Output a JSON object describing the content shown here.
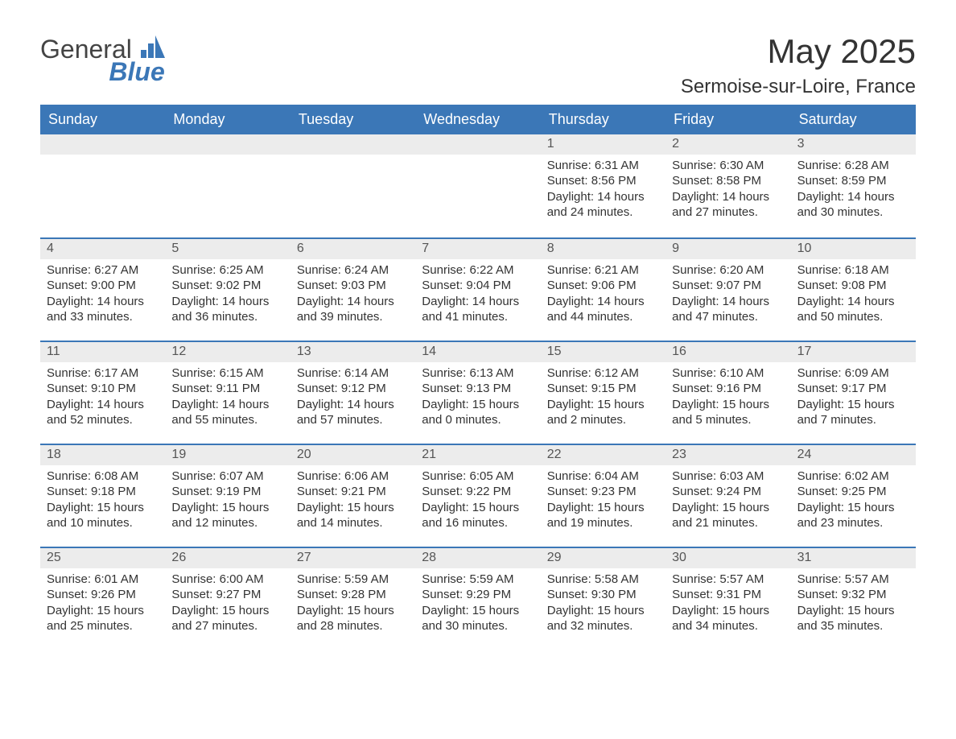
{
  "brand": {
    "text_general": "General",
    "text_blue": "Blue",
    "logo_color": "#3b77b7"
  },
  "title": "May 2025",
  "location": "Sermoise-sur-Loire, France",
  "colors": {
    "header_bg": "#3b77b7",
    "header_text": "#ffffff",
    "date_row_bg": "#ececec",
    "border_color": "#3b77b7",
    "text_color": "#333333"
  },
  "day_headers": [
    "Sunday",
    "Monday",
    "Tuesday",
    "Wednesday",
    "Thursday",
    "Friday",
    "Saturday"
  ],
  "weeks": [
    [
      {
        "empty": true
      },
      {
        "empty": true
      },
      {
        "empty": true
      },
      {
        "empty": true
      },
      {
        "date": "1",
        "sunrise": "Sunrise: 6:31 AM",
        "sunset": "Sunset: 8:56 PM",
        "daylight1": "Daylight: 14 hours",
        "daylight2": "and 24 minutes."
      },
      {
        "date": "2",
        "sunrise": "Sunrise: 6:30 AM",
        "sunset": "Sunset: 8:58 PM",
        "daylight1": "Daylight: 14 hours",
        "daylight2": "and 27 minutes."
      },
      {
        "date": "3",
        "sunrise": "Sunrise: 6:28 AM",
        "sunset": "Sunset: 8:59 PM",
        "daylight1": "Daylight: 14 hours",
        "daylight2": "and 30 minutes."
      }
    ],
    [
      {
        "date": "4",
        "sunrise": "Sunrise: 6:27 AM",
        "sunset": "Sunset: 9:00 PM",
        "daylight1": "Daylight: 14 hours",
        "daylight2": "and 33 minutes."
      },
      {
        "date": "5",
        "sunrise": "Sunrise: 6:25 AM",
        "sunset": "Sunset: 9:02 PM",
        "daylight1": "Daylight: 14 hours",
        "daylight2": "and 36 minutes."
      },
      {
        "date": "6",
        "sunrise": "Sunrise: 6:24 AM",
        "sunset": "Sunset: 9:03 PM",
        "daylight1": "Daylight: 14 hours",
        "daylight2": "and 39 minutes."
      },
      {
        "date": "7",
        "sunrise": "Sunrise: 6:22 AM",
        "sunset": "Sunset: 9:04 PM",
        "daylight1": "Daylight: 14 hours",
        "daylight2": "and 41 minutes."
      },
      {
        "date": "8",
        "sunrise": "Sunrise: 6:21 AM",
        "sunset": "Sunset: 9:06 PM",
        "daylight1": "Daylight: 14 hours",
        "daylight2": "and 44 minutes."
      },
      {
        "date": "9",
        "sunrise": "Sunrise: 6:20 AM",
        "sunset": "Sunset: 9:07 PM",
        "daylight1": "Daylight: 14 hours",
        "daylight2": "and 47 minutes."
      },
      {
        "date": "10",
        "sunrise": "Sunrise: 6:18 AM",
        "sunset": "Sunset: 9:08 PM",
        "daylight1": "Daylight: 14 hours",
        "daylight2": "and 50 minutes."
      }
    ],
    [
      {
        "date": "11",
        "sunrise": "Sunrise: 6:17 AM",
        "sunset": "Sunset: 9:10 PM",
        "daylight1": "Daylight: 14 hours",
        "daylight2": "and 52 minutes."
      },
      {
        "date": "12",
        "sunrise": "Sunrise: 6:15 AM",
        "sunset": "Sunset: 9:11 PM",
        "daylight1": "Daylight: 14 hours",
        "daylight2": "and 55 minutes."
      },
      {
        "date": "13",
        "sunrise": "Sunrise: 6:14 AM",
        "sunset": "Sunset: 9:12 PM",
        "daylight1": "Daylight: 14 hours",
        "daylight2": "and 57 minutes."
      },
      {
        "date": "14",
        "sunrise": "Sunrise: 6:13 AM",
        "sunset": "Sunset: 9:13 PM",
        "daylight1": "Daylight: 15 hours",
        "daylight2": "and 0 minutes."
      },
      {
        "date": "15",
        "sunrise": "Sunrise: 6:12 AM",
        "sunset": "Sunset: 9:15 PM",
        "daylight1": "Daylight: 15 hours",
        "daylight2": "and 2 minutes."
      },
      {
        "date": "16",
        "sunrise": "Sunrise: 6:10 AM",
        "sunset": "Sunset: 9:16 PM",
        "daylight1": "Daylight: 15 hours",
        "daylight2": "and 5 minutes."
      },
      {
        "date": "17",
        "sunrise": "Sunrise: 6:09 AM",
        "sunset": "Sunset: 9:17 PM",
        "daylight1": "Daylight: 15 hours",
        "daylight2": "and 7 minutes."
      }
    ],
    [
      {
        "date": "18",
        "sunrise": "Sunrise: 6:08 AM",
        "sunset": "Sunset: 9:18 PM",
        "daylight1": "Daylight: 15 hours",
        "daylight2": "and 10 minutes."
      },
      {
        "date": "19",
        "sunrise": "Sunrise: 6:07 AM",
        "sunset": "Sunset: 9:19 PM",
        "daylight1": "Daylight: 15 hours",
        "daylight2": "and 12 minutes."
      },
      {
        "date": "20",
        "sunrise": "Sunrise: 6:06 AM",
        "sunset": "Sunset: 9:21 PM",
        "daylight1": "Daylight: 15 hours",
        "daylight2": "and 14 minutes."
      },
      {
        "date": "21",
        "sunrise": "Sunrise: 6:05 AM",
        "sunset": "Sunset: 9:22 PM",
        "daylight1": "Daylight: 15 hours",
        "daylight2": "and 16 minutes."
      },
      {
        "date": "22",
        "sunrise": "Sunrise: 6:04 AM",
        "sunset": "Sunset: 9:23 PM",
        "daylight1": "Daylight: 15 hours",
        "daylight2": "and 19 minutes."
      },
      {
        "date": "23",
        "sunrise": "Sunrise: 6:03 AM",
        "sunset": "Sunset: 9:24 PM",
        "daylight1": "Daylight: 15 hours",
        "daylight2": "and 21 minutes."
      },
      {
        "date": "24",
        "sunrise": "Sunrise: 6:02 AM",
        "sunset": "Sunset: 9:25 PM",
        "daylight1": "Daylight: 15 hours",
        "daylight2": "and 23 minutes."
      }
    ],
    [
      {
        "date": "25",
        "sunrise": "Sunrise: 6:01 AM",
        "sunset": "Sunset: 9:26 PM",
        "daylight1": "Daylight: 15 hours",
        "daylight2": "and 25 minutes."
      },
      {
        "date": "26",
        "sunrise": "Sunrise: 6:00 AM",
        "sunset": "Sunset: 9:27 PM",
        "daylight1": "Daylight: 15 hours",
        "daylight2": "and 27 minutes."
      },
      {
        "date": "27",
        "sunrise": "Sunrise: 5:59 AM",
        "sunset": "Sunset: 9:28 PM",
        "daylight1": "Daylight: 15 hours",
        "daylight2": "and 28 minutes."
      },
      {
        "date": "28",
        "sunrise": "Sunrise: 5:59 AM",
        "sunset": "Sunset: 9:29 PM",
        "daylight1": "Daylight: 15 hours",
        "daylight2": "and 30 minutes."
      },
      {
        "date": "29",
        "sunrise": "Sunrise: 5:58 AM",
        "sunset": "Sunset: 9:30 PM",
        "daylight1": "Daylight: 15 hours",
        "daylight2": "and 32 minutes."
      },
      {
        "date": "30",
        "sunrise": "Sunrise: 5:57 AM",
        "sunset": "Sunset: 9:31 PM",
        "daylight1": "Daylight: 15 hours",
        "daylight2": "and 34 minutes."
      },
      {
        "date": "31",
        "sunrise": "Sunrise: 5:57 AM",
        "sunset": "Sunset: 9:32 PM",
        "daylight1": "Daylight: 15 hours",
        "daylight2": "and 35 minutes."
      }
    ]
  ]
}
